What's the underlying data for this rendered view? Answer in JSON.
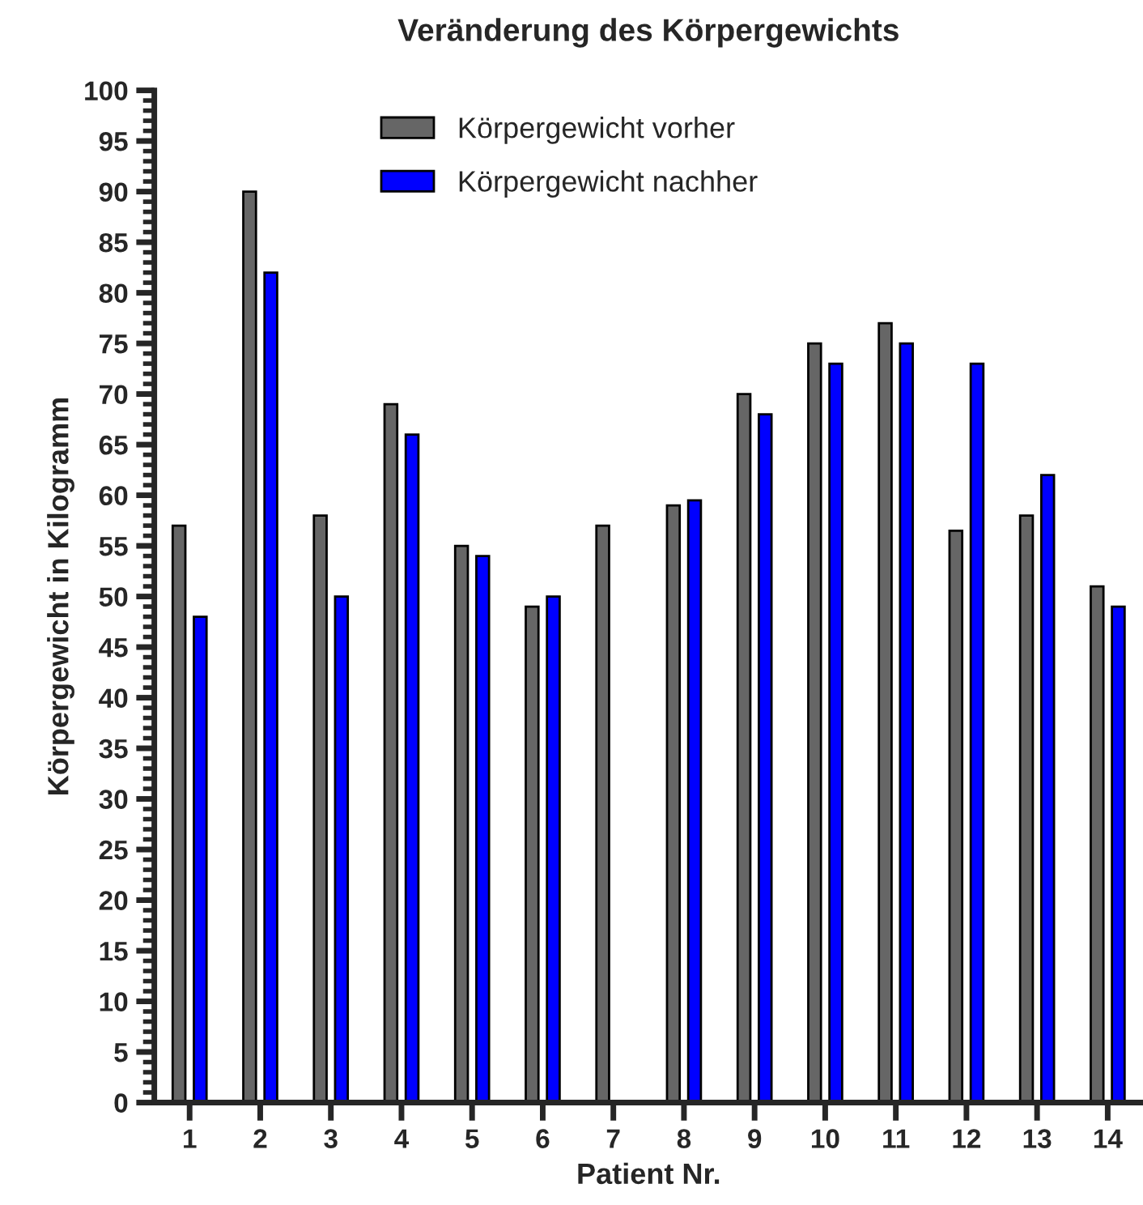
{
  "chart_data": {
    "type": "bar",
    "title": "Veränderung des Körpergewichts",
    "xlabel": "Patient Nr.",
    "ylabel": "Körpergewicht in Kilogramm",
    "categories": [
      "1",
      "2",
      "3",
      "4",
      "5",
      "6",
      "7",
      "8",
      "9",
      "10",
      "11",
      "12",
      "13",
      "14"
    ],
    "series": [
      {
        "name": "Körpergewicht vorher",
        "color": "#666666",
        "values": [
          57,
          90,
          58,
          69,
          55,
          49,
          57,
          59,
          70,
          75,
          77,
          56.5,
          58,
          51
        ]
      },
      {
        "name": "Körpergewicht nachher",
        "color": "#0000ff",
        "values": [
          48,
          82,
          50,
          66,
          54,
          50,
          null,
          59.5,
          68,
          73,
          75,
          73,
          62,
          49
        ]
      }
    ],
    "ylim": [
      0,
      100
    ],
    "yticks": [
      0,
      5,
      10,
      15,
      20,
      25,
      30,
      35,
      40,
      45,
      50,
      55,
      60,
      65,
      70,
      75,
      80,
      85,
      90,
      95,
      100
    ],
    "grid": false,
    "legend": "top"
  }
}
